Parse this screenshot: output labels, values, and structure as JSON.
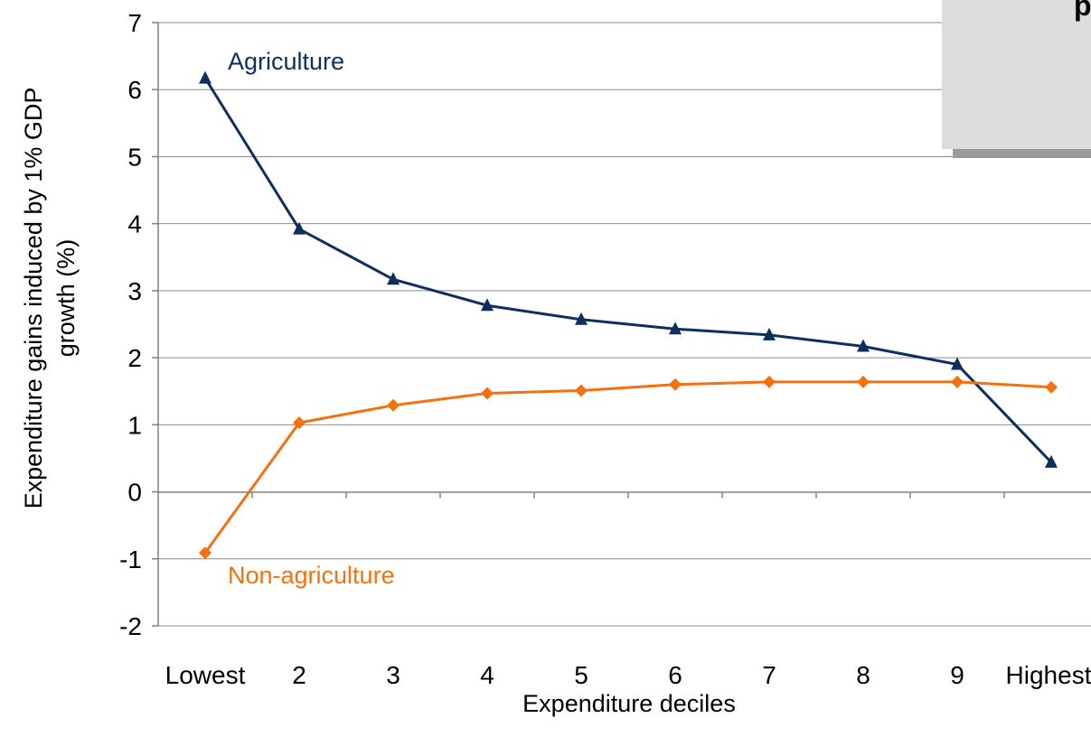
{
  "chart_data": {
    "type": "line",
    "categories": [
      "Lowest",
      "2",
      "3",
      "4",
      "5",
      "6",
      "7",
      "8",
      "9",
      "Highest"
    ],
    "series": [
      {
        "name": "Agriculture",
        "values": [
          6.17,
          3.92,
          3.17,
          2.78,
          2.57,
          2.43,
          2.34,
          2.17,
          1.9,
          0.44
        ],
        "color": "#0d2f5f",
        "marker": "triangle"
      },
      {
        "name": "Non-agriculture",
        "values": [
          -0.91,
          1.03,
          1.29,
          1.47,
          1.51,
          1.6,
          1.64,
          1.64,
          1.64,
          1.56
        ],
        "color": "#f5700f",
        "marker": "diamond"
      }
    ],
    "xlabel": "Expenditure deciles",
    "ylabel_line1": "Expenditure gains induced by 1% GDP",
    "ylabel_line2": "growth (%)",
    "ylim": [
      -2,
      7
    ],
    "yticks": [
      "-2",
      "-1",
      "0",
      "1",
      "2",
      "3",
      "4",
      "5",
      "6",
      "7"
    ],
    "grid": true,
    "legend": "none"
  },
  "overlay": {
    "text": "p"
  }
}
